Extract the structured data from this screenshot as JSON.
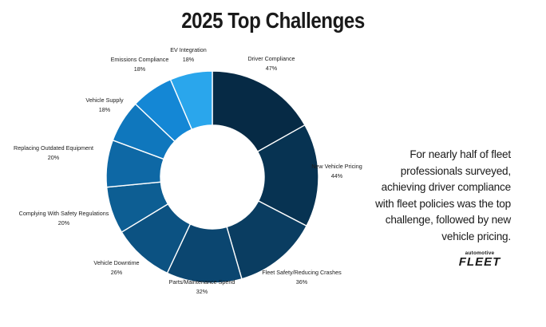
{
  "chart_data": {
    "type": "pie",
    "title": "2025 Top Challenges",
    "categories": [
      "Driver Compliance",
      "New Vehicle Pricing",
      "Fleet Safety/Reducing Crashes",
      "Parts/Maintenance Spend",
      "Vehicle Downtime",
      "Complying With Safety Regulations",
      "Replacing Outdated Equipment",
      "Vehicle Supply",
      "Emissions Compliance",
      "EV Integration"
    ],
    "values": [
      47,
      44,
      36,
      32,
      26,
      20,
      20,
      18,
      18,
      18
    ],
    "value_labels": [
      "47%",
      "44%",
      "36%",
      "32%",
      "26%",
      "20%",
      "20%",
      "18%",
      "18%",
      "18%"
    ],
    "colors": [
      "#062a45",
      "#073352",
      "#0a3d61",
      "#0b4670",
      "#0c5282",
      "#0d5e93",
      "#0e68a5",
      "#0f77bd",
      "#1487d5",
      "#2aa6ec"
    ]
  },
  "caption": {
    "lines": [
      "For nearly half of fleet",
      "professionals surveyed,",
      "achieving driver compliance",
      "with fleet policies was the top",
      "challenge, followed by new",
      "vehicle pricing."
    ]
  },
  "logo": {
    "top_text": "automotive",
    "main_text": "FLEET"
  }
}
